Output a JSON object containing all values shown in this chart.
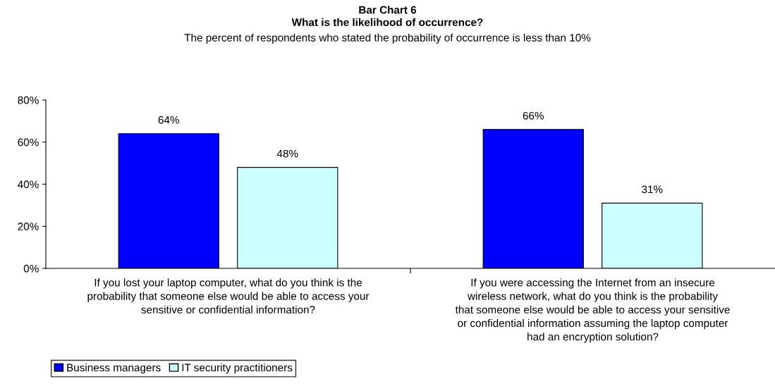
{
  "chart_data": {
    "type": "bar",
    "title": "Bar Chart 6\nWhat is the likelihood of occurrence?",
    "subtitle": "The percent of respondents who stated the probability of occurrence is less than 10%",
    "categories": [
      "If you lost your laptop computer, what do you think is the probability that someone else would be able to access your sensitive or confidential information?",
      "If you were accessing the Internet from an insecure wireless network, what do you think is the probability that someone else would be able to access your sensitive or confidential information assuming the laptop computer had an encryption solution?"
    ],
    "series": [
      {
        "name": "Business managers",
        "color": "#0000ff",
        "values": [
          64,
          66
        ],
        "value_labels": [
          "64%",
          "66%"
        ]
      },
      {
        "name": "IT security practitioners",
        "color": "#ccffff",
        "values": [
          48,
          31
        ],
        "value_labels": [
          "48%",
          "31%"
        ]
      }
    ],
    "ylim": [
      0,
      80
    ],
    "yticks": [
      {
        "value": 0,
        "label": "0%"
      },
      {
        "value": 20,
        "label": "20%"
      },
      {
        "value": 40,
        "label": "40%"
      },
      {
        "value": 60,
        "label": "60%"
      },
      {
        "value": 80,
        "label": "80%"
      }
    ],
    "grid": false,
    "legend": "bottom left"
  }
}
